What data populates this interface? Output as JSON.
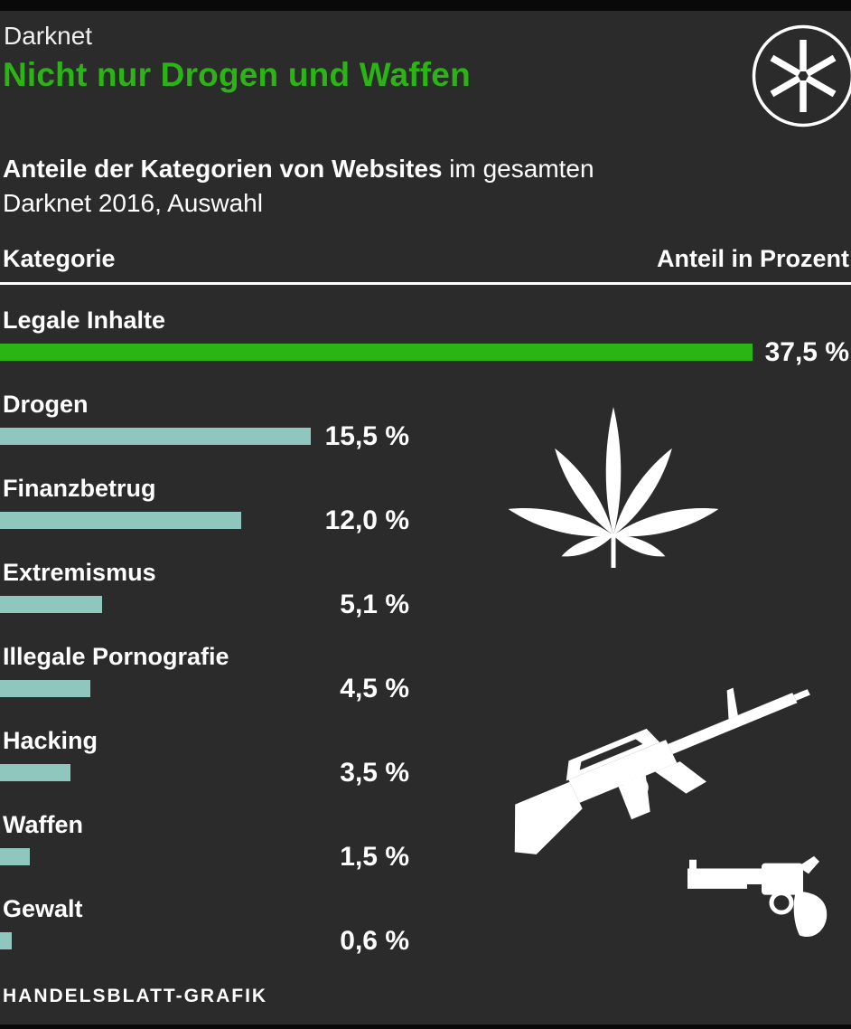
{
  "header": {
    "kicker": "Darknet",
    "title": "Nicht nur Drogen und Waffen"
  },
  "subtitle": {
    "bold": "Anteile der Kategorien von Websites",
    "regular": " im gesamten",
    "line2": "Darknet 2016, Auswahl"
  },
  "table_header": {
    "left": "Kategorie",
    "right": "Anteil in Prozent"
  },
  "rows": [
    {
      "label": "Legale Inhalte",
      "value": 37.5,
      "value_label": "37,5 %",
      "highlight": true
    },
    {
      "label": "Drogen",
      "value": 15.5,
      "value_label": "15,5 %",
      "highlight": false
    },
    {
      "label": "Finanzbetrug",
      "value": 12.0,
      "value_label": "12,0 %",
      "highlight": false
    },
    {
      "label": "Extremismus",
      "value": 5.1,
      "value_label": "5,1 %",
      "highlight": false
    },
    {
      "label": "Illegale Pornografie",
      "value": 4.5,
      "value_label": "4,5 %",
      "highlight": false
    },
    {
      "label": "Hacking",
      "value": 3.5,
      "value_label": "3,5 %",
      "highlight": false
    },
    {
      "label": "Waffen",
      "value": 1.5,
      "value_label": "1,5 %",
      "highlight": false
    },
    {
      "label": "Gewalt",
      "value": 0.6,
      "value_label": "0,6 %",
      "highlight": false
    }
  ],
  "footer": {
    "credit": "HANDELSBLATT-GRAFIK"
  },
  "colors": {
    "background": "#2b2b2b",
    "accent_green": "#2bb514",
    "bar_teal": "#8fc6be",
    "text": "#ffffff"
  },
  "icons": [
    "asterisk-logo-icon",
    "cannabis-leaf-icon",
    "rifle-icon",
    "revolver-icon"
  ],
  "chart_data": {
    "type": "bar",
    "orientation": "horizontal",
    "title": "Nicht nur Drogen und Waffen",
    "kicker": "Darknet",
    "subtitle": "Anteile der Kategorien von Websites im gesamten Darknet 2016, Auswahl",
    "categories": [
      "Legale Inhalte",
      "Drogen",
      "Finanzbetrug",
      "Extremismus",
      "Illegale Pornografie",
      "Hacking",
      "Waffen",
      "Gewalt"
    ],
    "values": [
      37.5,
      15.5,
      12.0,
      5.1,
      4.5,
      3.5,
      1.5,
      0.6
    ],
    "value_labels": [
      "37,5 %",
      "15,5 %",
      "12,0 %",
      "5,1 %",
      "4,5 %",
      "3,5 %",
      "1,5 %",
      "0,6 %"
    ],
    "unit": "percent",
    "xlabel": "Anteil in Prozent",
    "ylabel": "Kategorie",
    "xlim": [
      0,
      37.5
    ],
    "grid": false,
    "legend": false,
    "highlight_category": "Legale Inhalte",
    "highlight_color": "#2bb514",
    "bar_color": "#8fc6be",
    "source": "HANDELSBLATT-GRAFIK"
  }
}
